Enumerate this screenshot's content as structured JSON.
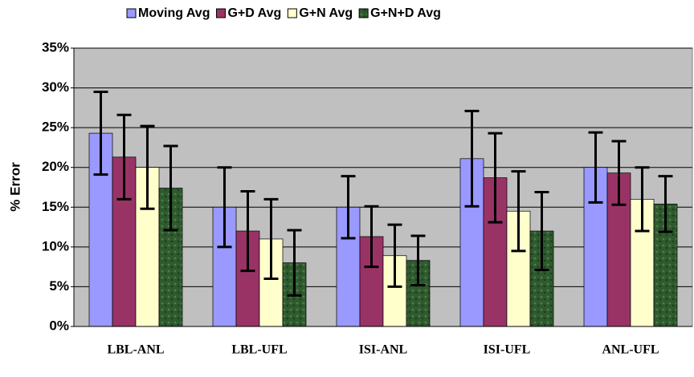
{
  "chart_data": {
    "type": "bar",
    "y_label": "% Error",
    "categories": [
      "LBL-ANL",
      "LBL-UFL",
      "ISI-ANL",
      "ISI-UFL",
      "ANL-UFL"
    ],
    "series": [
      {
        "name": "Moving Avg",
        "color": "#9999ff",
        "values": [
          24.3,
          15,
          15,
          21.1,
          20
        ],
        "errors": [
          5.2,
          5,
          3.9,
          6,
          4.4
        ]
      },
      {
        "name": "G+D Avg",
        "color": "#993366",
        "values": [
          21.3,
          12,
          11.3,
          18.7,
          19.3
        ],
        "errors": [
          5.3,
          5,
          3.8,
          5.6,
          4
        ]
      },
      {
        "name": "G+N Avg",
        "color": "#ffffcc",
        "values": [
          20,
          11,
          8.9,
          14.5,
          16
        ],
        "errors": [
          5.2,
          5,
          3.9,
          5,
          4
        ]
      },
      {
        "name": "G+N+D Avg",
        "color": "#2e5a2e",
        "values": [
          17.4,
          8,
          8.3,
          12,
          15.4
        ],
        "errors": [
          5.3,
          4.1,
          3.1,
          4.9,
          3.5
        ]
      }
    ],
    "ylim": [
      0,
      35
    ],
    "yticks": [
      {
        "value": 0,
        "label": "0%"
      },
      {
        "value": 5,
        "label": "5%"
      },
      {
        "value": 10,
        "label": "10%"
      },
      {
        "value": 15,
        "label": "15%"
      },
      {
        "value": 20,
        "label": "20%"
      },
      {
        "value": 25,
        "label": "25%"
      },
      {
        "value": 30,
        "label": "30%"
      },
      {
        "value": 35,
        "label": "35%"
      }
    ],
    "grid": true,
    "legend": "top"
  }
}
